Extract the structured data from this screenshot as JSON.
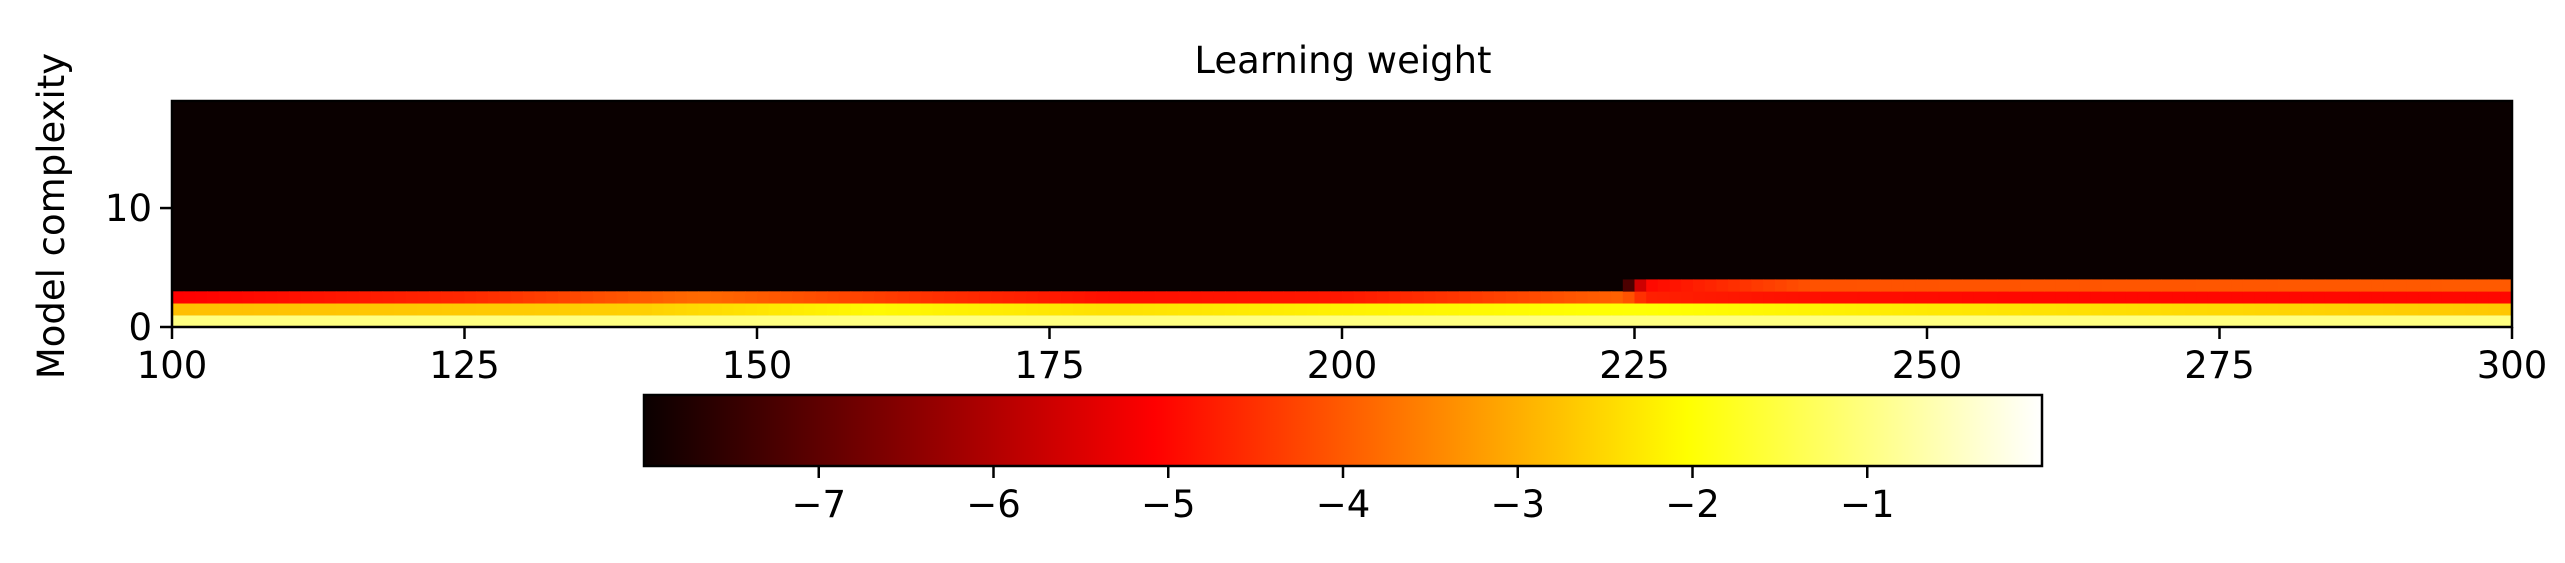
{
  "chart_data": {
    "type": "heatmap",
    "title": "Learning weight",
    "xlabel": "",
    "ylabel": "Model complexity",
    "x_range": [
      100,
      300
    ],
    "y_range": [
      0,
      19
    ],
    "x_ticks": [
      100,
      125,
      150,
      175,
      200,
      225,
      250,
      275,
      300
    ],
    "y_ticks": [
      0,
      10
    ],
    "colormap": "hot",
    "colorbar": {
      "orientation": "horizontal",
      "placement": "bottom",
      "range": [
        -8,
        0
      ],
      "ticks": [
        -7,
        -6,
        -5,
        -4,
        -3,
        -2,
        -1
      ],
      "tick_labels": [
        "−7",
        "−6",
        "−5",
        "−4",
        "−3",
        "−2",
        "−1"
      ]
    },
    "grid": false,
    "row_profiles": [
      {
        "row": 0,
        "x": [
          100,
          300
        ],
        "values": [
          -1.0,
          -1.0
        ]
      },
      {
        "row": 1,
        "x": [
          100,
          140,
          160,
          180,
          200,
          225,
          250,
          300
        ],
        "values": [
          -2.8,
          -2.6,
          -2.1,
          -2.4,
          -2.2,
          -2.0,
          -2.3,
          -2.7
        ]
      },
      {
        "row": 2,
        "x": [
          100,
          125,
          145,
          165,
          180,
          200,
          224,
          226,
          240,
          260,
          300
        ],
        "values": [
          -5.1,
          -4.6,
          -3.8,
          -4.5,
          -4.9,
          -4.8,
          -3.9,
          -4.7,
          -4.9,
          -5.0,
          -5.0
        ]
      },
      {
        "row": 3,
        "x": [
          100,
          224,
          226,
          240,
          300
        ],
        "values": [
          -8.0,
          -8.0,
          -5.0,
          -4.1,
          -4.0
        ]
      },
      {
        "row": 4,
        "x": [
          100,
          300
        ],
        "values": [
          -8.0,
          -8.0
        ]
      }
    ],
    "background_value": -8.0
  }
}
